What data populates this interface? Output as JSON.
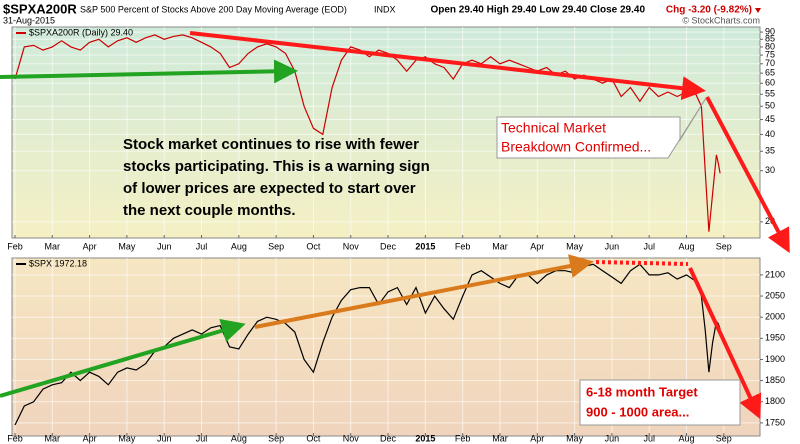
{
  "header": {
    "symbol": "$SPXA200R",
    "description": "S&P 500 Percent of Stocks Above 200 Day Moving Average (EOD)",
    "exchange": "INDX",
    "date": "31-Aug-2015",
    "quote": "Open 29.40 High 29.40 Low 29.40 Close 29.40",
    "change": "Chg -3.20 (-9.82%)",
    "copyright": "© StockCharts.com"
  },
  "annotations": {
    "commentary": [
      "Stock market continues to rise with fewer",
      "stocks participating. This is a warning sign",
      "of lower prices are expected to start over",
      "the next couple months."
    ],
    "breakdown": [
      "Technical Market",
      "Breakdown Confirmed..."
    ],
    "target": [
      "6-18 month Target",
      "900 - 1000 area..."
    ]
  },
  "chart_data": [
    {
      "type": "line",
      "log_scale": true,
      "grid": true,
      "x": [
        0,
        0.25,
        0.5,
        0.75,
        1,
        1.25,
        1.5,
        1.75,
        2,
        2.25,
        2.5,
        2.75,
        3,
        3.25,
        3.5,
        3.75,
        4,
        4.25,
        4.5,
        4.75,
        5,
        5.25,
        5.5,
        5.75,
        6,
        6.25,
        6.5,
        6.75,
        7,
        7.25,
        7.5,
        7.75,
        8,
        8.25,
        8.5,
        8.75,
        9,
        9.25,
        9.5,
        9.75,
        10,
        10.25,
        10.5,
        10.75,
        11,
        11.25,
        11.5,
        11.75,
        12,
        12.25,
        12.5,
        12.75,
        13,
        13.25,
        13.5,
        13.75,
        14,
        14.25,
        14.5,
        14.75,
        15,
        15.25,
        15.5,
        15.75,
        16,
        16.25,
        16.5,
        16.75,
        17,
        17.25,
        17.5,
        17.75,
        18,
        18.25,
        18.4,
        18.5,
        18.6,
        18.7,
        18.8,
        18.85,
        18.9
      ],
      "series": [
        {
          "name": "$SPXA200R (Daily) 29.40",
          "color": "#cc0000",
          "values": [
            62,
            80,
            81,
            78,
            80,
            84,
            80,
            78,
            83,
            85,
            80,
            84,
            86,
            83,
            86,
            88,
            85,
            87,
            88,
            86,
            83,
            80,
            76,
            68,
            70,
            76,
            80,
            82,
            80,
            76,
            66,
            50,
            42,
            40,
            58,
            72,
            80,
            78,
            74,
            78,
            76,
            72,
            66,
            72,
            74,
            70,
            68,
            62,
            70,
            72,
            70,
            74,
            70,
            72,
            70,
            68,
            66,
            68,
            64,
            66,
            62,
            64,
            62,
            60,
            62,
            54,
            58,
            52,
            58,
            54,
            56,
            54,
            56,
            55,
            50,
            30,
            18.5,
            25,
            34,
            32,
            29.4
          ]
        }
      ],
      "xlim": [
        -0.08,
        19.97
      ],
      "xticks": [
        {
          "value": 0,
          "label": "Feb"
        },
        {
          "value": 1,
          "label": "Mar"
        },
        {
          "value": 2,
          "label": "Apr"
        },
        {
          "value": 3,
          "label": "May"
        },
        {
          "value": 4,
          "label": "Jun"
        },
        {
          "value": 5,
          "label": "Jul"
        },
        {
          "value": 6,
          "label": "Aug"
        },
        {
          "value": 7,
          "label": "Sep"
        },
        {
          "value": 8,
          "label": "Oct"
        },
        {
          "value": 9,
          "label": "Nov"
        },
        {
          "value": 10,
          "label": "Dec"
        },
        {
          "value": 11,
          "label": "2015"
        },
        {
          "value": 12,
          "label": "Feb"
        },
        {
          "value": 13,
          "label": "Mar"
        },
        {
          "value": 14,
          "label": "Apr"
        },
        {
          "value": 15,
          "label": "May"
        },
        {
          "value": 16,
          "label": "Jun"
        },
        {
          "value": 17,
          "label": "Jul"
        },
        {
          "value": 18,
          "label": "Aug"
        },
        {
          "value": 19,
          "label": "Sep"
        }
      ],
      "ylim": [
        17.6,
        93.7
      ],
      "yticks": [
        90,
        85,
        80,
        75,
        70,
        65,
        60,
        55,
        50,
        45,
        40,
        35,
        30,
        20
      ]
    },
    {
      "type": "line",
      "log_scale": false,
      "grid": true,
      "x": [
        0,
        0.25,
        0.5,
        0.75,
        1,
        1.25,
        1.5,
        1.75,
        2,
        2.25,
        2.5,
        2.75,
        3,
        3.25,
        3.5,
        3.75,
        4,
        4.25,
        4.5,
        4.75,
        5,
        5.25,
        5.5,
        5.75,
        6,
        6.25,
        6.5,
        6.75,
        7,
        7.25,
        7.5,
        7.75,
        8,
        8.25,
        8.5,
        8.75,
        9,
        9.25,
        9.5,
        9.75,
        10,
        10.25,
        10.5,
        10.75,
        11,
        11.25,
        11.5,
        11.75,
        12,
        12.25,
        12.5,
        12.75,
        13,
        13.25,
        13.5,
        13.75,
        14,
        14.25,
        14.5,
        14.75,
        15,
        15.25,
        15.5,
        15.75,
        16,
        16.25,
        16.5,
        16.75,
        17,
        17.25,
        17.5,
        17.75,
        18,
        18.25,
        18.4,
        18.5,
        18.6,
        18.7,
        18.8,
        18.85,
        18.9
      ],
      "series": [
        {
          "name": "$SPX 1972.18",
          "color": "#000000",
          "values": [
            1745,
            1790,
            1800,
            1830,
            1840,
            1845,
            1870,
            1850,
            1870,
            1860,
            1840,
            1870,
            1880,
            1875,
            1890,
            1920,
            1930,
            1950,
            1960,
            1970,
            1960,
            1975,
            1980,
            1930,
            1925,
            1960,
            1990,
            2000,
            1995,
            1985,
            1965,
            1900,
            1870,
            1940,
            2000,
            2040,
            2065,
            2070,
            2070,
            2030,
            2060,
            2070,
            2030,
            2070,
            2010,
            2050,
            2020,
            1995,
            2050,
            2100,
            2110,
            2095,
            2080,
            2070,
            2100,
            2100,
            2080,
            2100,
            2110,
            2110,
            2105,
            2120,
            2125,
            2110,
            2095,
            2080,
            2110,
            2125,
            2100,
            2100,
            2105,
            2090,
            2100,
            2085,
            2050,
            1970,
            1870,
            1940,
            1990,
            1985,
            1972.18
          ]
        }
      ],
      "xlim": [
        -0.08,
        19.97
      ],
      "xticks": [
        {
          "value": 0,
          "label": "Feb"
        },
        {
          "value": 1,
          "label": "Mar"
        },
        {
          "value": 2,
          "label": "Apr"
        },
        {
          "value": 3,
          "label": "May"
        },
        {
          "value": 4,
          "label": "Jun"
        },
        {
          "value": 5,
          "label": "Jul"
        },
        {
          "value": 6,
          "label": "Aug"
        },
        {
          "value": 7,
          "label": "Sep"
        },
        {
          "value": 8,
          "label": "Oct"
        },
        {
          "value": 9,
          "label": "Nov"
        },
        {
          "value": 10,
          "label": "Dec"
        },
        {
          "value": 11,
          "label": "2015"
        },
        {
          "value": 12,
          "label": "Feb"
        },
        {
          "value": 13,
          "label": "Mar"
        },
        {
          "value": 14,
          "label": "Apr"
        },
        {
          "value": 15,
          "label": "May"
        },
        {
          "value": 16,
          "label": "Jun"
        },
        {
          "value": 17,
          "label": "Jul"
        },
        {
          "value": 18,
          "label": "Aug"
        },
        {
          "value": 19,
          "label": "Sep"
        }
      ],
      "ylim": [
        1719,
        2140
      ],
      "yticks": [
        2100,
        2050,
        2000,
        1950,
        1900,
        1850,
        1800,
        1750
      ]
    }
  ]
}
